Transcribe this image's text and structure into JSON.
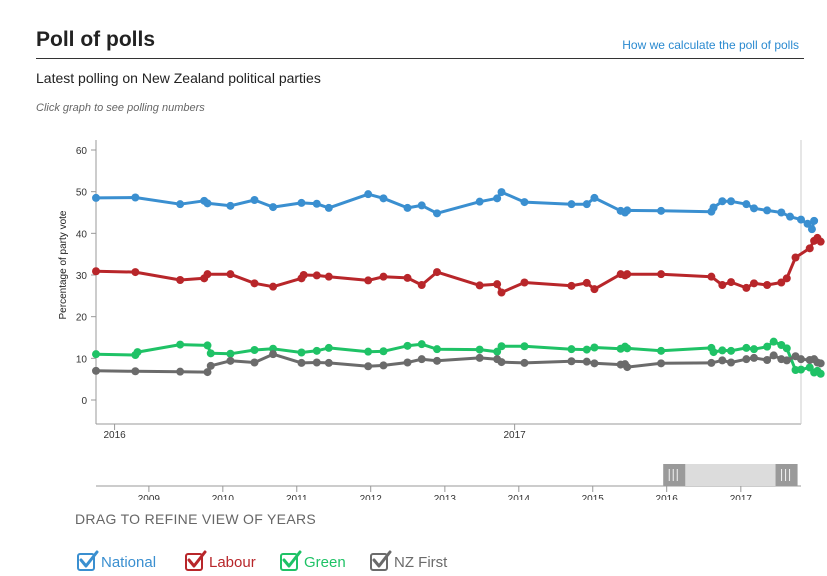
{
  "header": {
    "title": "Poll of polls",
    "calc_link": "How we calculate the poll of polls",
    "subtitle": "Latest polling on New Zealand political parties",
    "hint": "Click graph to see polling numbers"
  },
  "chart_data": {
    "type": "line",
    "ylabel": "Percentage of party vote",
    "ylim": [
      0,
      60
    ],
    "yticks": [
      0,
      10,
      20,
      30,
      40,
      50,
      60
    ],
    "xlim": [
      "2015-12-15",
      "2017-09-20"
    ],
    "xticks": [
      {
        "date": "2016-01-01",
        "label": "2016"
      },
      {
        "date": "2017-01-01",
        "label": "2017"
      }
    ],
    "grid": false,
    "series": [
      {
        "name": "National",
        "color": "#3a8fd0",
        "points": [
          [
            "2015-12-15",
            48.5
          ],
          [
            "2016-01-20",
            48.6
          ],
          [
            "2016-03-01",
            47
          ],
          [
            "2016-03-23",
            47.8
          ],
          [
            "2016-03-26",
            47.2
          ],
          [
            "2016-04-16",
            46.6
          ],
          [
            "2016-05-08",
            48
          ],
          [
            "2016-05-25",
            46.3
          ],
          [
            "2016-06-20",
            47.3
          ],
          [
            "2016-07-04",
            47.1
          ],
          [
            "2016-07-15",
            46.1
          ],
          [
            "2016-08-20",
            49.4
          ],
          [
            "2016-09-03",
            48.4
          ],
          [
            "2016-09-25",
            46.1
          ],
          [
            "2016-10-08",
            46.7
          ],
          [
            "2016-10-22",
            44.8
          ],
          [
            "2016-11-30",
            47.6
          ],
          [
            "2016-12-16",
            48.4
          ],
          [
            "2016-12-20",
            49.9
          ],
          [
            "2017-01-10",
            47.5
          ],
          [
            "2017-02-22",
            47
          ],
          [
            "2017-03-08",
            47
          ],
          [
            "2017-03-15",
            48.5
          ],
          [
            "2017-04-08",
            45.4
          ],
          [
            "2017-04-12",
            45
          ],
          [
            "2017-04-14",
            45.5
          ],
          [
            "2017-05-15",
            45.4
          ],
          [
            "2017-06-30",
            45.2
          ],
          [
            "2017-07-02",
            46.2
          ],
          [
            "2017-07-10",
            47.7
          ],
          [
            "2017-07-18",
            47.7
          ],
          [
            "2017-08-01",
            47
          ],
          [
            "2017-08-08",
            46
          ],
          [
            "2017-08-20",
            45.5
          ],
          [
            "2017-09-02",
            45
          ],
          [
            "2017-09-10",
            44
          ],
          [
            "2017-09-20",
            43.3
          ],
          [
            "2017-09-26",
            42.3
          ],
          [
            "2017-09-30",
            41
          ],
          [
            "2017-10-02",
            43
          ]
        ]
      },
      {
        "name": "Labour",
        "color": "#b8262a",
        "points": [
          [
            "2015-12-15",
            30.9
          ],
          [
            "2016-01-20",
            30.7
          ],
          [
            "2016-03-01",
            28.8
          ],
          [
            "2016-03-23",
            29.2
          ],
          [
            "2016-03-26",
            30.2
          ],
          [
            "2016-04-16",
            30.2
          ],
          [
            "2016-05-08",
            28
          ],
          [
            "2016-05-25",
            27.2
          ],
          [
            "2016-06-20",
            29.2
          ],
          [
            "2016-06-22",
            30
          ],
          [
            "2016-07-04",
            29.9
          ],
          [
            "2016-07-15",
            29.6
          ],
          [
            "2016-08-20",
            28.7
          ],
          [
            "2016-09-03",
            29.6
          ],
          [
            "2016-09-25",
            29.3
          ],
          [
            "2016-10-08",
            27.6
          ],
          [
            "2016-10-22",
            30.7
          ],
          [
            "2016-11-30",
            27.5
          ],
          [
            "2016-12-16",
            27.8
          ],
          [
            "2016-12-20",
            25.8
          ],
          [
            "2017-01-10",
            28.2
          ],
          [
            "2017-02-22",
            27.4
          ],
          [
            "2017-03-08",
            28.1
          ],
          [
            "2017-03-15",
            26.6
          ],
          [
            "2017-04-08",
            30.2
          ],
          [
            "2017-04-12",
            29.9
          ],
          [
            "2017-04-14",
            30.2
          ],
          [
            "2017-05-15",
            30.2
          ],
          [
            "2017-06-30",
            29.6
          ],
          [
            "2017-07-10",
            27.6
          ],
          [
            "2017-07-18",
            28.3
          ],
          [
            "2017-08-01",
            26.9
          ],
          [
            "2017-08-08",
            28
          ],
          [
            "2017-08-20",
            27.6
          ],
          [
            "2017-09-02",
            28.2
          ],
          [
            "2017-09-07",
            29.2
          ],
          [
            "2017-09-15",
            34.2
          ],
          [
            "2017-09-28",
            36.4
          ],
          [
            "2017-10-02",
            38.2
          ],
          [
            "2017-10-05",
            38.9
          ],
          [
            "2017-10-08",
            38
          ]
        ]
      },
      {
        "name": "Green",
        "color": "#1fc266",
        "points": [
          [
            "2015-12-15",
            11
          ],
          [
            "2016-01-20",
            10.8
          ],
          [
            "2016-01-22",
            11.5
          ],
          [
            "2016-03-01",
            13.3
          ],
          [
            "2016-03-26",
            13.1
          ],
          [
            "2016-03-29",
            11.2
          ],
          [
            "2016-04-16",
            11.1
          ],
          [
            "2016-05-08",
            12
          ],
          [
            "2016-05-25",
            12.3
          ],
          [
            "2016-06-20",
            11.4
          ],
          [
            "2016-07-04",
            11.8
          ],
          [
            "2016-07-15",
            12.5
          ],
          [
            "2016-08-20",
            11.6
          ],
          [
            "2016-09-03",
            11.7
          ],
          [
            "2016-09-25",
            13
          ],
          [
            "2016-10-08",
            13.4
          ],
          [
            "2016-10-22",
            12.2
          ],
          [
            "2016-11-30",
            12.1
          ],
          [
            "2016-12-16",
            11.6
          ],
          [
            "2016-12-20",
            12.9
          ],
          [
            "2017-01-10",
            12.9
          ],
          [
            "2017-02-22",
            12.2
          ],
          [
            "2017-03-08",
            12.1
          ],
          [
            "2017-03-15",
            12.6
          ],
          [
            "2017-04-08",
            12.3
          ],
          [
            "2017-04-12",
            12.8
          ],
          [
            "2017-04-14",
            12.4
          ],
          [
            "2017-05-15",
            11.8
          ],
          [
            "2017-06-30",
            12.5
          ],
          [
            "2017-07-02",
            11.5
          ],
          [
            "2017-07-10",
            11.9
          ],
          [
            "2017-07-18",
            11.8
          ],
          [
            "2017-08-01",
            12.5
          ],
          [
            "2017-08-08",
            12.2
          ],
          [
            "2017-08-20",
            12.8
          ],
          [
            "2017-08-26",
            14
          ],
          [
            "2017-09-02",
            13.2
          ],
          [
            "2017-09-07",
            12.4
          ],
          [
            "2017-09-15",
            7.2
          ],
          [
            "2017-09-20",
            7.3
          ],
          [
            "2017-09-28",
            7.8
          ],
          [
            "2017-10-02",
            6.6
          ],
          [
            "2017-10-05",
            7
          ],
          [
            "2017-10-08",
            6.3
          ]
        ]
      },
      {
        "name": "NZ First",
        "color": "#6b6b6b",
        "points": [
          [
            "2015-12-15",
            7
          ],
          [
            "2016-01-20",
            6.9
          ],
          [
            "2016-03-01",
            6.8
          ],
          [
            "2016-03-26",
            6.7
          ],
          [
            "2016-03-29",
            8.2
          ],
          [
            "2016-04-16",
            9.4
          ],
          [
            "2016-05-08",
            9
          ],
          [
            "2016-05-25",
            11
          ],
          [
            "2016-06-20",
            8.9
          ],
          [
            "2016-07-04",
            9
          ],
          [
            "2016-07-15",
            8.9
          ],
          [
            "2016-08-20",
            8.1
          ],
          [
            "2016-09-03",
            8.3
          ],
          [
            "2016-09-25",
            9
          ],
          [
            "2016-10-08",
            9.8
          ],
          [
            "2016-10-22",
            9.4
          ],
          [
            "2016-11-30",
            10.1
          ],
          [
            "2016-12-16",
            9.8
          ],
          [
            "2016-12-20",
            9.1
          ],
          [
            "2017-01-10",
            8.9
          ],
          [
            "2017-02-22",
            9.3
          ],
          [
            "2017-03-08",
            9.2
          ],
          [
            "2017-03-15",
            8.8
          ],
          [
            "2017-04-08",
            8.5
          ],
          [
            "2017-04-12",
            8.6
          ],
          [
            "2017-04-14",
            7.9
          ],
          [
            "2017-05-15",
            8.8
          ],
          [
            "2017-06-30",
            8.9
          ],
          [
            "2017-07-10",
            9.5
          ],
          [
            "2017-07-18",
            9
          ],
          [
            "2017-08-01",
            9.8
          ],
          [
            "2017-08-08",
            10.1
          ],
          [
            "2017-08-20",
            9.6
          ],
          [
            "2017-08-26",
            10.7
          ],
          [
            "2017-09-02",
            9.8
          ],
          [
            "2017-09-07",
            9.5
          ],
          [
            "2017-09-15",
            10.5
          ],
          [
            "2017-09-20",
            9.8
          ],
          [
            "2017-09-28",
            9.6
          ],
          [
            "2017-10-02",
            9.8
          ],
          [
            "2017-10-05",
            9
          ],
          [
            "2017-10-08",
            8.8
          ]
        ]
      }
    ]
  },
  "navigator": {
    "years": [
      "2009",
      "2010",
      "2011",
      "2012",
      "2013",
      "2014",
      "2015",
      "2016",
      "2017"
    ],
    "selected_from": "2015-12-15",
    "selected_to": "2017-10-08",
    "drag_label": "DRAG TO REFINE VIEW OF YEARS"
  },
  "legend": [
    {
      "label": "National",
      "color": "#3a8fd0"
    },
    {
      "label": "Labour",
      "color": "#b8262a"
    },
    {
      "label": "Green",
      "color": "#1fc266"
    },
    {
      "label": "NZ First",
      "color": "#6b6b6b"
    }
  ]
}
